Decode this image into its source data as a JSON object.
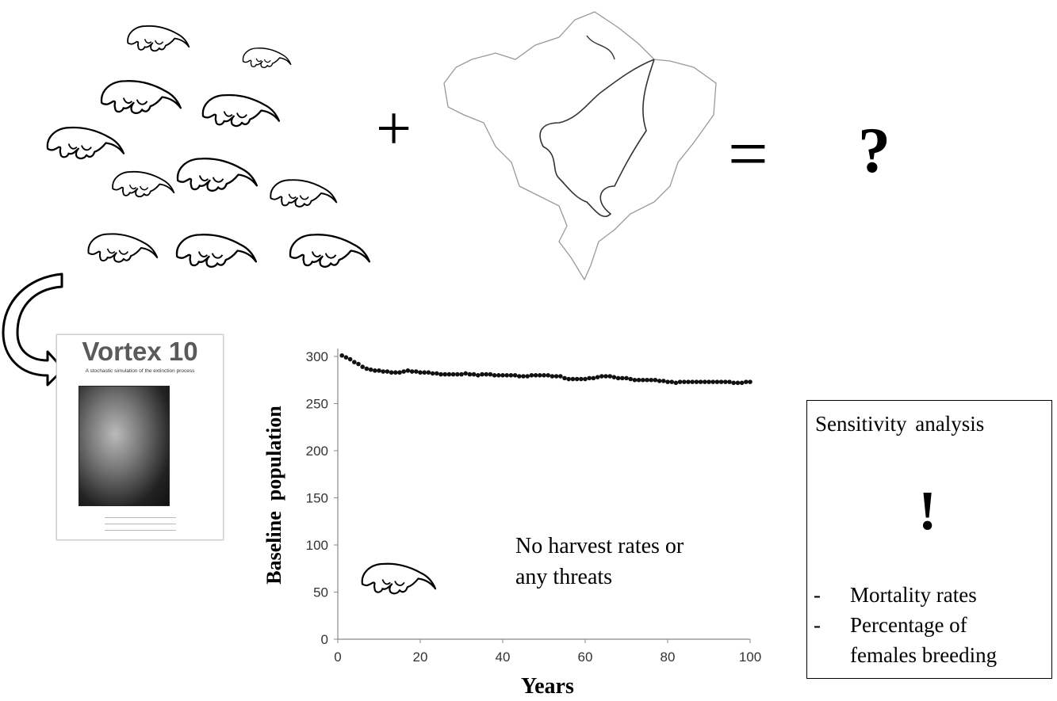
{
  "operators": {
    "plus": "+",
    "equals": "=",
    "question": "?"
  },
  "vortex": {
    "title": "Vortex 10",
    "subtitle": "A stochastic simulation of the extinction process"
  },
  "chart_data": {
    "type": "scatter",
    "xlabel": "Years",
    "ylabel": "Baseline  population",
    "xlim": [
      0,
      100
    ],
    "ylim": [
      0,
      300
    ],
    "x_ticks": [
      "0",
      "20",
      "40",
      "60",
      "80",
      "100"
    ],
    "y_ticks": [
      "0",
      "50",
      "100",
      "150",
      "200",
      "250",
      "300"
    ],
    "grid": false,
    "annotation": [
      "No harvest rates or",
      "any threats"
    ],
    "x": [
      1,
      2,
      3,
      4,
      5,
      6,
      7,
      8,
      9,
      10,
      11,
      12,
      13,
      14,
      15,
      16,
      17,
      18,
      19,
      20,
      21,
      22,
      23,
      24,
      25,
      26,
      27,
      28,
      29,
      30,
      31,
      32,
      33,
      34,
      35,
      36,
      37,
      38,
      39,
      40,
      41,
      42,
      43,
      44,
      45,
      46,
      47,
      48,
      49,
      50,
      51,
      52,
      53,
      54,
      55,
      56,
      57,
      58,
      59,
      60,
      61,
      62,
      63,
      64,
      65,
      66,
      67,
      68,
      69,
      70,
      71,
      72,
      73,
      74,
      75,
      76,
      77,
      78,
      79,
      80,
      81,
      82,
      83,
      84,
      85,
      86,
      87,
      88,
      89,
      90,
      91,
      92,
      93,
      94,
      95,
      96,
      97,
      98,
      99,
      100
    ],
    "y": [
      301,
      299,
      297,
      294,
      292,
      289,
      287,
      286,
      285,
      285,
      284,
      284,
      283,
      283,
      283,
      284,
      285,
      284,
      284,
      283,
      283,
      283,
      282,
      282,
      281,
      281,
      281,
      281,
      281,
      281,
      282,
      281,
      281,
      280,
      281,
      281,
      281,
      280,
      280,
      280,
      280,
      280,
      280,
      279,
      279,
      279,
      280,
      280,
      280,
      280,
      280,
      279,
      279,
      279,
      277,
      276,
      276,
      276,
      276,
      276,
      277,
      277,
      278,
      279,
      279,
      279,
      278,
      277,
      277,
      277,
      276,
      275,
      275,
      275,
      275,
      275,
      275,
      274,
      274,
      273,
      273,
      272,
      273,
      273,
      273,
      273,
      273,
      273,
      273,
      273,
      273,
      273,
      273,
      273,
      273,
      272,
      272,
      272,
      273,
      273
    ]
  },
  "sensitivity": {
    "title": "Sensitivity analysis",
    "mark": "!",
    "items": [
      {
        "bullet": "-",
        "lines": [
          "Mortality rates"
        ]
      },
      {
        "bullet": "-",
        "lines": [
          "Percentage of",
          "females breeding"
        ]
      }
    ]
  }
}
